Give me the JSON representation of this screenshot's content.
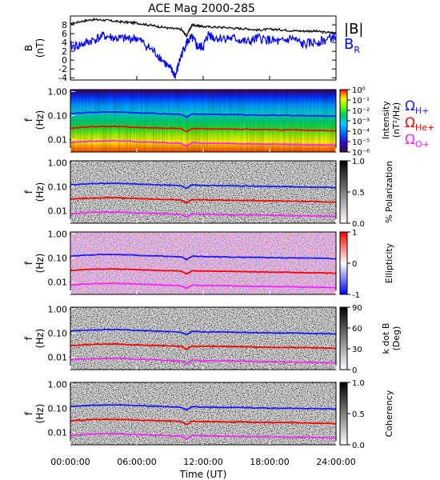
{
  "chart_data": [
    {
      "type": "line",
      "title": "ACE Mag 2000-285",
      "ylabel": "B",
      "yunit": "(nT)",
      "ylim": [
        -4.5,
        10
      ],
      "y_ticks": [
        "-4",
        "-2",
        "0",
        "2",
        "4",
        "6",
        "8"
      ],
      "y_tick_values": [
        -4,
        -2,
        0,
        2,
        4,
        6,
        8
      ],
      "legend_placement": "right",
      "series": [
        {
          "name": "|B|",
          "color": "#000000",
          "x": [
            0,
            1,
            2,
            3,
            4,
            5,
            6,
            7,
            8,
            9,
            10,
            10.5,
            11,
            11.5,
            12,
            13,
            14,
            15,
            16,
            17,
            18,
            19,
            20,
            21,
            22,
            23,
            24
          ],
          "y": [
            8.2,
            8.8,
            9.2,
            9.1,
            8.8,
            8.6,
            8.4,
            8.0,
            7.6,
            7.2,
            7.0,
            5.5,
            8.0,
            7.8,
            7.6,
            7.5,
            7.4,
            7.2,
            7.1,
            6.8,
            7.0,
            6.9,
            6.7,
            6.6,
            6.6,
            6.3,
            6.2
          ]
        },
        {
          "name": "BR",
          "label_main": "B",
          "label_sub": "R",
          "color": "#0000ff",
          "x": [
            0,
            1,
            2,
            3,
            4,
            5,
            6,
            7,
            8,
            9,
            9.5,
            10,
            10.5,
            11,
            11.5,
            12,
            12.5,
            13,
            14,
            15,
            16,
            17,
            18,
            19,
            20,
            21,
            22,
            23,
            24
          ],
          "y": [
            3.0,
            3.5,
            4.5,
            5.5,
            5.0,
            4.8,
            5.0,
            3.0,
            1.0,
            -2.0,
            -3.5,
            1.0,
            4.0,
            5.0,
            3.0,
            3.0,
            6.0,
            5.0,
            5.0,
            4.8,
            4.0,
            5.0,
            4.5,
            4.0,
            5.0,
            3.5,
            4.0,
            4.5,
            5.5
          ]
        }
      ]
    },
    {
      "type": "heatmap",
      "ylabel": "f",
      "yunit": "(Hz)",
      "y_scale": "log",
      "ylim": [
        0.003,
        1.2
      ],
      "y_ticks": [
        "1.00",
        "0.10",
        "0.01"
      ],
      "y_tick_values": [
        1,
        0.1,
        0.01
      ],
      "colorbar_label": "Intensity",
      "colorbar_unit": "(nT²/Hz)",
      "colorbar_ticks": [
        "10⁰",
        "10⁻¹",
        "10⁻²",
        "10⁻³",
        "10⁻⁴",
        "10⁻⁵",
        "10⁻⁶"
      ],
      "colorbar_tick_values": [
        1,
        0.1,
        0.01,
        0.001,
        0.0001,
        1e-05,
        1e-06
      ],
      "colormap": "rainbow"
    },
    {
      "type": "heatmap",
      "ylabel": "f",
      "yunit": "(Hz)",
      "y_scale": "log",
      "y_ticks": [
        "1.00",
        "0.10",
        "0.01"
      ],
      "y_tick_values": [
        1,
        0.1,
        0.01
      ],
      "colorbar_label": "% Polarization",
      "colorbar_ticks": [
        "1.0",
        "0.5",
        "0.0"
      ],
      "colorbar_tick_values": [
        1,
        0.5,
        0
      ],
      "colormap": "gray"
    },
    {
      "type": "heatmap",
      "ylabel": "f",
      "yunit": "(Hz)",
      "y_scale": "log",
      "y_ticks": [
        "1.00",
        "0.10",
        "0.01"
      ],
      "y_tick_values": [
        1,
        0.1,
        0.01
      ],
      "colorbar_label": "Ellipticity",
      "colorbar_ticks": [
        "1",
        "0",
        "-1"
      ],
      "colorbar_tick_values": [
        1,
        0,
        -1
      ],
      "colormap": "blue-white-red"
    },
    {
      "type": "heatmap",
      "ylabel": "f",
      "yunit": "(Hz)",
      "y_scale": "log",
      "y_ticks": [
        "1.00",
        "0.10",
        "0.01"
      ],
      "y_tick_values": [
        1,
        0.1,
        0.01
      ],
      "colorbar_label": "k dot B",
      "colorbar_unit": "(Deg)",
      "colorbar_ticks": [
        "90",
        "60",
        "30",
        "0"
      ],
      "colorbar_tick_values": [
        90,
        60,
        30,
        0
      ],
      "colormap": "gray"
    },
    {
      "type": "heatmap",
      "ylabel": "f",
      "yunit": "(Hz)",
      "y_scale": "log",
      "y_ticks": [
        "1.00",
        "0.10",
        "0.01"
      ],
      "y_tick_values": [
        1,
        0.1,
        0.01
      ],
      "colorbar_label": "Coherency",
      "colorbar_ticks": [
        "1.0",
        "0.5",
        "0.0"
      ],
      "colorbar_tick_values": [
        1,
        0.5,
        0
      ],
      "colormap": "gray"
    }
  ],
  "gyro_lines": [
    {
      "name": "H+",
      "label_main": "Ω",
      "label_sub": "H+",
      "color": "#1a1aff",
      "x": [
        0,
        2,
        4,
        6,
        8,
        10,
        10.5,
        11,
        12,
        14,
        16,
        18,
        20,
        22,
        24
      ],
      "f": [
        0.12,
        0.135,
        0.14,
        0.13,
        0.12,
        0.11,
        0.085,
        0.118,
        0.112,
        0.11,
        0.106,
        0.102,
        0.1,
        0.097,
        0.093
      ]
    },
    {
      "name": "He+",
      "label_main": "Ω",
      "label_sub": "He+",
      "color": "#ff0000",
      "x": [
        0,
        2,
        4,
        6,
        8,
        10,
        10.5,
        11,
        12,
        14,
        16,
        18,
        20,
        22,
        24
      ],
      "f": [
        0.03,
        0.034,
        0.035,
        0.032,
        0.03,
        0.028,
        0.021,
        0.029,
        0.028,
        0.0275,
        0.0265,
        0.0255,
        0.025,
        0.024,
        0.023
      ]
    },
    {
      "name": "O+",
      "label_main": "Ω",
      "label_sub": "O+",
      "color": "#ff22ff",
      "x": [
        0,
        2,
        4,
        6,
        8,
        10,
        10.5,
        11,
        12,
        14,
        16,
        18,
        20,
        22,
        24
      ],
      "f": [
        0.0075,
        0.0085,
        0.0088,
        0.0081,
        0.0075,
        0.0069,
        0.0053,
        0.0074,
        0.007,
        0.0069,
        0.0066,
        0.0064,
        0.0062,
        0.006,
        0.0058
      ]
    }
  ],
  "x_axis": {
    "label": "Time (UT)",
    "ticks": [
      "00:00:00",
      "06:00:00",
      "12:00:00",
      "18:00:00",
      "24:00:00"
    ],
    "tick_values": [
      0,
      6,
      12,
      18,
      24
    ],
    "xlim": [
      0,
      24
    ]
  }
}
